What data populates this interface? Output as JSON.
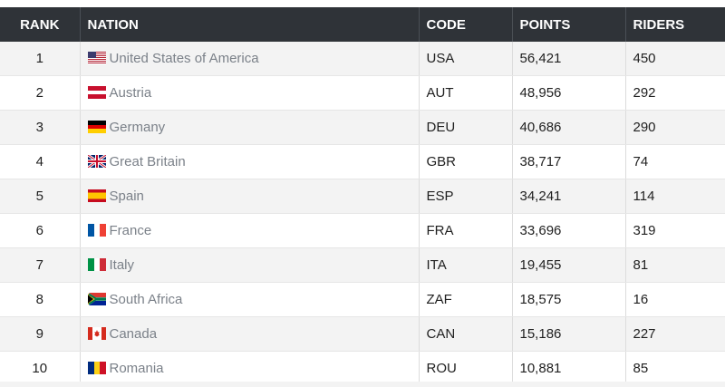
{
  "table": {
    "header": [
      "RANK",
      "NATION",
      "CODE",
      "POINTS",
      "RIDERS"
    ],
    "rows": [
      [
        "1",
        "United States of America",
        "USA",
        "56,421",
        "450"
      ],
      [
        "2",
        "Austria",
        "AUT",
        "48,956",
        "292"
      ],
      [
        "3",
        "Germany",
        "DEU",
        "40,686",
        "290"
      ],
      [
        "4",
        "Great Britain",
        "GBR",
        "38,717",
        "74"
      ],
      [
        "5",
        "Spain",
        "ESP",
        "34,241",
        "114"
      ],
      [
        "6",
        "France",
        "FRA",
        "33,696",
        "319"
      ],
      [
        "7",
        "Italy",
        "ITA",
        "19,455",
        "81"
      ],
      [
        "8",
        "South Africa",
        "ZAF",
        "18,575",
        "16"
      ],
      [
        "9",
        "Canada",
        "CAN",
        "15,186",
        "227"
      ],
      [
        "10",
        "Romania",
        "ROU",
        "10,881",
        "85"
      ]
    ]
  }
}
